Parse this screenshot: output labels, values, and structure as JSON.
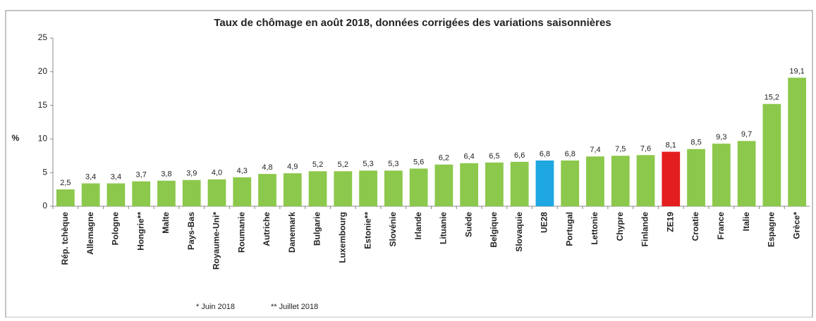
{
  "chart_data": {
    "type": "bar",
    "title": "Taux de chômage en août 2018, données corrigées des variations saisonnières",
    "y_label": "%",
    "categories": [
      "Rép. tchèque",
      "Allemagne",
      "Pologne",
      "Hongrie**",
      "Malte",
      "Pays-Bas",
      "Royaume-Uni*",
      "Roumanie",
      "Autriche",
      "Danemark",
      "Bulgarie",
      "Luxembourg",
      "Estonie**",
      "Slovénie",
      "Irlande",
      "Lituanie",
      "Suède",
      "Belgique",
      "Slovaquie",
      "UE28",
      "Portugal",
      "Lettonie",
      "Chypre",
      "Finlande",
      "ZE19",
      "Croatie",
      "France",
      "Italie",
      "Espagne",
      "Grèce*"
    ],
    "values": [
      2.5,
      3.4,
      3.4,
      3.7,
      3.8,
      3.9,
      4.0,
      4.3,
      4.8,
      4.9,
      5.2,
      5.2,
      5.3,
      5.3,
      5.6,
      6.2,
      6.4,
      6.5,
      6.6,
      6.8,
      6.8,
      7.4,
      7.5,
      7.6,
      8.1,
      8.5,
      9.3,
      9.7,
      15.2,
      19.1
    ],
    "value_labels": [
      "2,5",
      "3,4",
      "3,4",
      "3,7",
      "3,8",
      "3,9",
      "4,0",
      "4,3",
      "4,8",
      "4,9",
      "5,2",
      "5,2",
      "5,3",
      "5,3",
      "5,6",
      "6,2",
      "6,4",
      "6,5",
      "6,6",
      "6,8",
      "6,8",
      "7,4",
      "7,5",
      "7,6",
      "8,1",
      "8,5",
      "9,3",
      "9,7",
      "15,2",
      "19,1"
    ],
    "colors": [
      "#8cc84b",
      "#8cc84b",
      "#8cc84b",
      "#8cc84b",
      "#8cc84b",
      "#8cc84b",
      "#8cc84b",
      "#8cc84b",
      "#8cc84b",
      "#8cc84b",
      "#8cc84b",
      "#8cc84b",
      "#8cc84b",
      "#8cc84b",
      "#8cc84b",
      "#8cc84b",
      "#8cc84b",
      "#8cc84b",
      "#8cc84b",
      "#1ea7e1",
      "#8cc84b",
      "#8cc84b",
      "#8cc84b",
      "#8cc84b",
      "#e41e1e",
      "#8cc84b",
      "#8cc84b",
      "#8cc84b",
      "#8cc84b",
      "#8cc84b"
    ],
    "ylim": [
      0,
      25
    ],
    "yticks": [
      0,
      5,
      10,
      15,
      20,
      25
    ],
    "grid": false,
    "annotations": [
      "* Juin 2018",
      "** Juillet 2018"
    ]
  }
}
